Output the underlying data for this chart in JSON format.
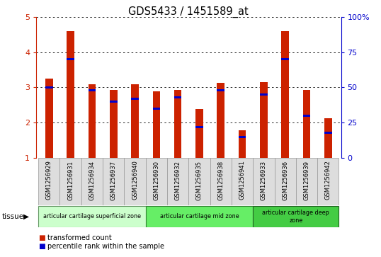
{
  "title": "GDS5433 / 1451589_at",
  "samples": [
    "GSM1256929",
    "GSM1256931",
    "GSM1256934",
    "GSM1256937",
    "GSM1256940",
    "GSM1256930",
    "GSM1256932",
    "GSM1256935",
    "GSM1256938",
    "GSM1256941",
    "GSM1256933",
    "GSM1256936",
    "GSM1256939",
    "GSM1256942"
  ],
  "transformed_count": [
    3.25,
    4.6,
    3.08,
    2.92,
    3.08,
    2.88,
    2.93,
    2.38,
    3.13,
    1.78,
    3.15,
    4.6,
    2.93,
    2.12
  ],
  "percentile_rank_raw": [
    50,
    70,
    48,
    40,
    42,
    35,
    43,
    22,
    48,
    15,
    45,
    70,
    30,
    18
  ],
  "bar_color": "#cc2200",
  "blue_color": "#0000cc",
  "ylim_left": [
    1,
    5
  ],
  "ylim_right": [
    0,
    100
  ],
  "yticks_left": [
    1,
    2,
    3,
    4,
    5
  ],
  "yticks_right": [
    0,
    25,
    50,
    75,
    100
  ],
  "ylabel_left_color": "#cc2200",
  "ylabel_right_color": "#0000cc",
  "tissue_groups": [
    {
      "label": "articular cartilage superficial zone",
      "start": 0,
      "end": 5,
      "color": "#ccffcc",
      "edgecolor": "#669966"
    },
    {
      "label": "articular cartilage mid zone",
      "start": 5,
      "end": 10,
      "color": "#66ee66",
      "edgecolor": "#338833"
    },
    {
      "label": "articular cartilage deep\nzone",
      "start": 10,
      "end": 14,
      "color": "#44cc44",
      "edgecolor": "#226622"
    }
  ],
  "tissue_label": "tissue",
  "legend_items": [
    {
      "label": "transformed count",
      "color": "#cc2200"
    },
    {
      "label": "percentile rank within the sample",
      "color": "#0000cc"
    }
  ],
  "background_plot": "#ffffff",
  "background_fig": "#ffffff",
  "bar_width": 0.35,
  "xtick_bg": "#dddddd",
  "xtick_border": "#999999"
}
